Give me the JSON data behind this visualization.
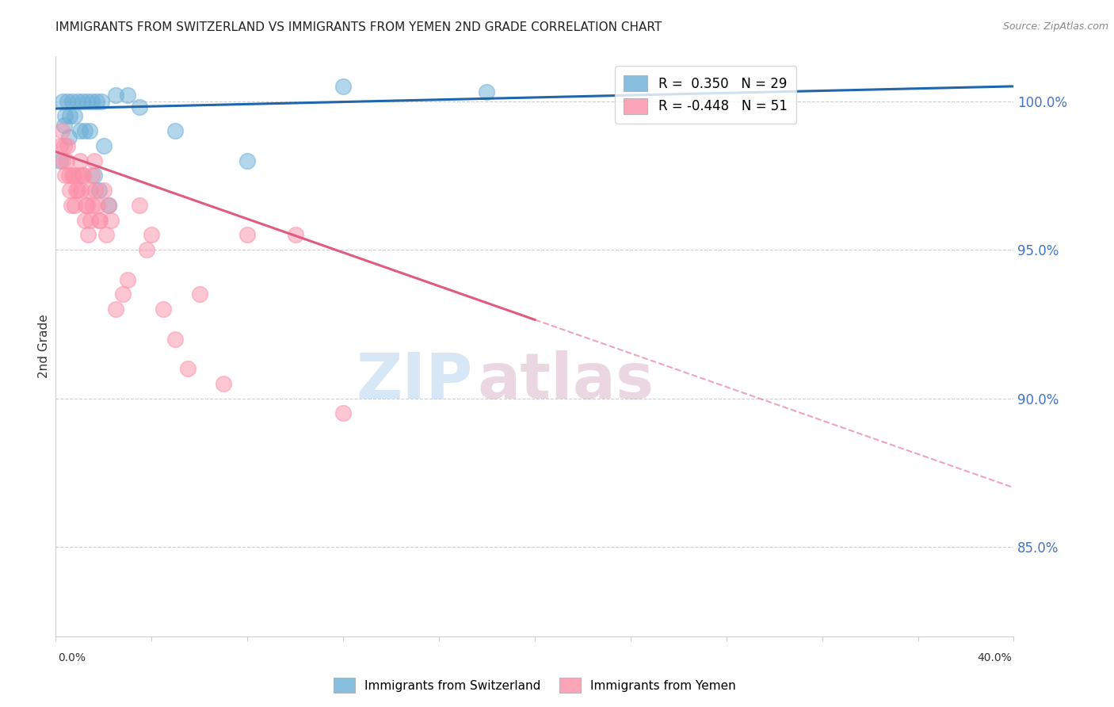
{
  "title": "IMMIGRANTS FROM SWITZERLAND VS IMMIGRANTS FROM YEMEN 2ND GRADE CORRELATION CHART",
  "source": "Source: ZipAtlas.com",
  "ylabel": "2nd Grade",
  "xmin": 0.0,
  "xmax": 40.0,
  "ymin": 82.0,
  "ymax": 101.5,
  "yticks": [
    85.0,
    90.0,
    95.0,
    100.0
  ],
  "blue_R": 0.35,
  "blue_N": 29,
  "pink_R": -0.448,
  "pink_N": 51,
  "blue_label": "Immigrants from Switzerland",
  "pink_label": "Immigrants from Yemen",
  "blue_color": "#6baed6",
  "pink_color": "#fc8fa8",
  "blue_line_color": "#2166ac",
  "pink_line_color": "#e05c7e",
  "axis_color": "#cccccc",
  "grid_color": "#cccccc",
  "right_label_color": "#4472c4",
  "background_color": "#ffffff",
  "watermark_zip": "ZIP",
  "watermark_atlas": "atlas",
  "blue_scatter_x": [
    0.3,
    0.5,
    0.7,
    0.9,
    1.1,
    1.3,
    1.5,
    1.7,
    1.9,
    0.4,
    0.6,
    0.8,
    1.0,
    1.2,
    1.4,
    2.5,
    3.0,
    3.5,
    2.0,
    1.6,
    1.8,
    2.2,
    0.2,
    0.35,
    0.55,
    12.0,
    18.0,
    5.0,
    8.0
  ],
  "blue_scatter_y": [
    100.0,
    100.0,
    100.0,
    100.0,
    100.0,
    100.0,
    100.0,
    100.0,
    100.0,
    99.5,
    99.5,
    99.5,
    99.0,
    99.0,
    99.0,
    100.2,
    100.2,
    99.8,
    98.5,
    97.5,
    97.0,
    96.5,
    98.0,
    99.2,
    98.8,
    100.5,
    100.3,
    99.0,
    98.0
  ],
  "pink_scatter_x": [
    0.2,
    0.3,
    0.4,
    0.5,
    0.6,
    0.7,
    0.8,
    0.9,
    1.0,
    1.1,
    1.2,
    1.3,
    1.4,
    1.5,
    1.6,
    1.8,
    2.0,
    2.2,
    2.5,
    3.0,
    3.5,
    4.0,
    5.0,
    6.0,
    8.0,
    10.0,
    0.25,
    0.35,
    0.45,
    0.55,
    0.65,
    0.75,
    0.85,
    0.95,
    1.05,
    1.15,
    1.25,
    1.35,
    1.45,
    1.55,
    1.65,
    1.75,
    1.85,
    2.1,
    2.3,
    2.8,
    4.5,
    3.8,
    5.5,
    7.0,
    12.0
  ],
  "pink_scatter_y": [
    98.5,
    98.0,
    97.5,
    98.5,
    97.0,
    97.5,
    96.5,
    97.0,
    98.0,
    97.5,
    96.0,
    96.5,
    97.0,
    97.5,
    98.0,
    96.0,
    97.0,
    96.5,
    93.0,
    94.0,
    96.5,
    95.5,
    92.0,
    93.5,
    95.5,
    95.5,
    99.0,
    98.5,
    98.0,
    97.5,
    96.5,
    97.5,
    97.0,
    97.5,
    97.0,
    97.5,
    96.5,
    95.5,
    96.0,
    96.5,
    97.0,
    96.5,
    96.0,
    95.5,
    96.0,
    93.5,
    93.0,
    95.0,
    91.0,
    90.5,
    89.5
  ],
  "blue_line_x0": 0.0,
  "blue_line_y0": 99.75,
  "blue_line_x1": 40.0,
  "blue_line_y1": 100.5,
  "pink_line_x0": 0.0,
  "pink_line_y0": 98.3,
  "pink_solid_x1": 20.0,
  "pink_solid_y1": 92.65,
  "pink_dash_x1": 40.0,
  "pink_dash_y1": 87.0
}
